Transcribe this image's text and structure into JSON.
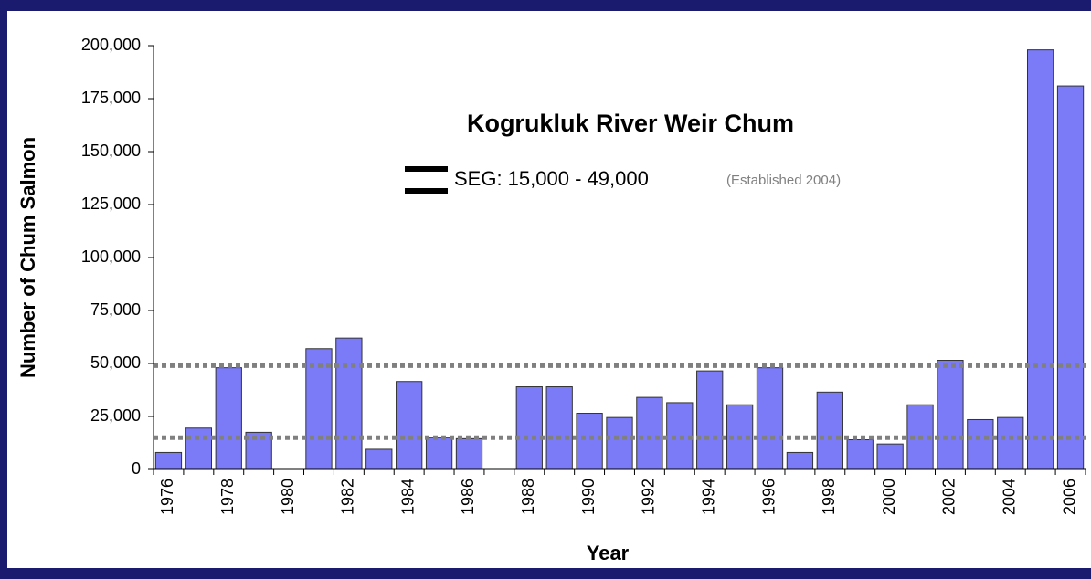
{
  "chart_data": {
    "type": "bar",
    "title": "Kogrukluk River Weir Chum",
    "x_label": "Year",
    "y_label": "Number of Chum Salmon",
    "legend_label": "SEG: 15,000 - 49,000",
    "legend_note": "(Established 2004)",
    "categories": [
      "1976",
      null,
      "1978",
      null,
      "1980",
      null,
      "1982",
      null,
      "1984",
      null,
      "1986",
      null,
      "1988",
      null,
      "1990",
      null,
      "1992",
      null,
      "1994",
      null,
      "1996",
      null,
      "1998",
      null,
      "2000",
      null,
      "2002",
      null,
      "2004",
      null,
      "2006"
    ],
    "values": [
      8000,
      19500,
      48000,
      17500,
      null,
      57000,
      62000,
      9500,
      41500,
      15000,
      14500,
      null,
      39000,
      39000,
      26500,
      24500,
      34000,
      31500,
      46500,
      30500,
      48000,
      8000,
      36500,
      14000,
      12000,
      30500,
      51500,
      23500,
      24500,
      198000,
      181000
    ],
    "color": "#7b7bf7",
    "ylim": [
      0,
      200000
    ],
    "yticks": [
      0,
      {
        "value": 25000,
        "label": "25,000"
      },
      {
        "value": 50000,
        "label": "50,000"
      },
      {
        "value": 75000,
        "label": "75,000"
      },
      {
        "value": 100000,
        "label": "100,000"
      },
      {
        "value": 125000,
        "label": "125,000"
      },
      {
        "value": 150000,
        "label": "150,000"
      },
      {
        "value": 175000,
        "label": "175,000"
      },
      {
        "value": 200000,
        "label": "200,000"
      }
    ],
    "reference_lines": [
      15000,
      49000
    ],
    "reference_color": "#808080"
  }
}
